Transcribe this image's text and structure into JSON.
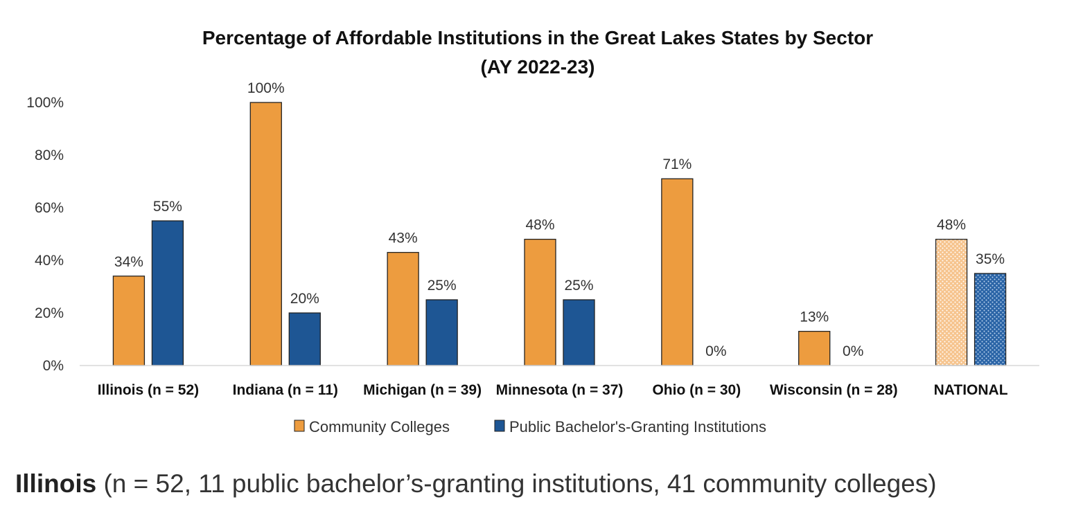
{
  "chart_data": {
    "type": "bar",
    "title": "Percentage of Affordable Institutions in the Great Lakes States by Sector",
    "subtitle": "(AY 2022-23)",
    "categories": [
      "Illinois (n = 52)",
      "Indiana (n = 11)",
      "Michigan (n = 39)",
      "Minnesota (n = 37)",
      "Ohio (n = 30)",
      "Wisconsin (n = 28)",
      "NATIONAL"
    ],
    "series": [
      {
        "name": "Community Colleges",
        "color": "#ed9c3f",
        "values": [
          34,
          100,
          43,
          48,
          71,
          13,
          48
        ],
        "labels": [
          "34%",
          "100%",
          "43%",
          "48%",
          "71%",
          "13%",
          "48%"
        ],
        "show_bar": [
          true,
          true,
          true,
          true,
          true,
          true,
          true
        ]
      },
      {
        "name": "Public Bachelor's-Granting Institutions",
        "color": "#1e5694",
        "values": [
          55,
          20,
          25,
          25,
          0,
          0,
          35
        ],
        "labels": [
          "55%",
          "20%",
          "25%",
          "25%",
          "0%",
          "0%",
          "35%"
        ],
        "show_bar": [
          true,
          true,
          true,
          true,
          false,
          false,
          true
        ]
      }
    ],
    "patterned_category": "NATIONAL",
    "xlabel": "",
    "ylabel": "",
    "ylim": [
      0,
      100
    ],
    "yticks": [
      "0%",
      "20%",
      "40%",
      "60%",
      "80%",
      "100%"
    ],
    "ytick_values": [
      0,
      20,
      40,
      60,
      80,
      100
    ],
    "grid": false,
    "legend": "bottom-center"
  },
  "caption": {
    "bold": "Illinois",
    "rest": " (n = 52, 11 public bachelor’s-granting institutions, 41 community colleges)"
  }
}
